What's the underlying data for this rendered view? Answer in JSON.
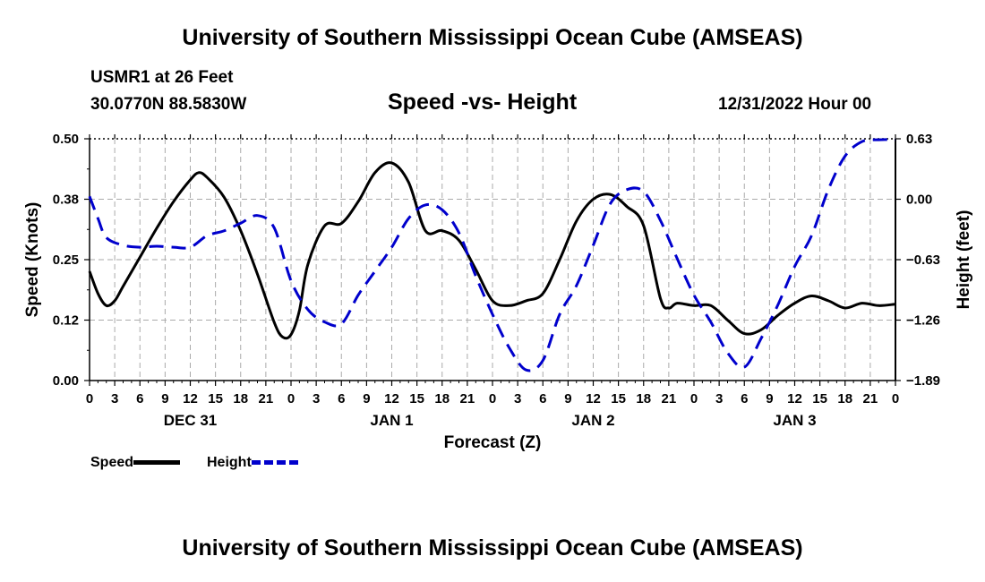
{
  "header": {
    "title": "University of Southern Mississippi Ocean Cube (AMSEAS)",
    "station": "USMR1 at 26 Feet",
    "coordinates": "30.0770N  88.5830W",
    "datetime": "12/31/2022 Hour 00"
  },
  "footer": {
    "title": "University of Southern Mississippi Ocean Cube (AMSEAS)"
  },
  "legend": {
    "speed_label": "Speed",
    "height_label": "Height"
  },
  "colors": {
    "speed": "#000000",
    "height": "#0000cc",
    "grid": "#aaaaaa"
  },
  "chart_data": {
    "type": "line",
    "title": "Speed -vs- Height",
    "xlabel": "Forecast (Z)",
    "ylabel": "Speed (Knots)",
    "y2label": "Height (feet)",
    "xlim": [
      0,
      96
    ],
    "ylim": [
      0,
      0.5
    ],
    "y2lim": [
      -1.89,
      0.63
    ],
    "grid": true,
    "x_ticks": [
      0,
      3,
      6,
      9,
      12,
      15,
      18,
      21,
      24,
      27,
      30,
      33,
      36,
      39,
      42,
      45,
      48,
      51,
      54,
      57,
      60,
      63,
      66,
      69,
      72,
      75,
      78,
      81,
      84,
      87,
      90,
      93,
      96
    ],
    "x_tick_labels": [
      "0",
      "3",
      "6",
      "9",
      "12",
      "15",
      "18",
      "21",
      "0",
      "3",
      "6",
      "9",
      "12",
      "15",
      "18",
      "21",
      "0",
      "3",
      "6",
      "9",
      "12",
      "15",
      "18",
      "21",
      "0",
      "3",
      "6",
      "9",
      "12",
      "15",
      "18",
      "21",
      "0"
    ],
    "day_labels": [
      {
        "x": 12,
        "label": "DEC 31"
      },
      {
        "x": 36,
        "label": "JAN 1"
      },
      {
        "x": 60,
        "label": "JAN 2"
      },
      {
        "x": 84,
        "label": "JAN 3"
      }
    ],
    "y_ticks": [
      0,
      0.125,
      0.25,
      0.375,
      0.5
    ],
    "y_tick_labels": [
      "0.00",
      "0.12",
      "0.25",
      "0.38",
      "0.50"
    ],
    "y2_ticks": [
      -1.89,
      -1.26,
      -0.63,
      0.0,
      0.63
    ],
    "y2_tick_labels": [
      "−1.89",
      "−1.26",
      "−0.63",
      "0.00",
      "0.63"
    ],
    "series": [
      {
        "name": "Speed",
        "axis": "left",
        "style": "solid",
        "x": [
          0,
          1,
          2,
          3,
          4,
          6,
          8,
          10,
          12,
          13,
          14,
          16,
          18,
          20,
          22,
          23,
          24,
          25,
          26,
          28,
          30,
          32,
          34,
          36,
          38,
          40,
          42,
          44,
          46,
          48,
          50,
          52,
          54,
          56,
          58,
          60,
          62,
          64,
          66,
          68,
          69,
          70,
          72,
          74,
          76,
          78,
          80,
          82,
          84,
          86,
          88,
          90,
          92,
          94,
          96
        ],
        "values": [
          0.226,
          0.18,
          0.155,
          0.165,
          0.195,
          0.255,
          0.315,
          0.37,
          0.415,
          0.43,
          0.42,
          0.38,
          0.31,
          0.22,
          0.12,
          0.09,
          0.095,
          0.145,
          0.24,
          0.32,
          0.325,
          0.37,
          0.43,
          0.45,
          0.41,
          0.31,
          0.31,
          0.29,
          0.23,
          0.165,
          0.155,
          0.165,
          0.18,
          0.25,
          0.33,
          0.375,
          0.385,
          0.36,
          0.32,
          0.17,
          0.15,
          0.16,
          0.155,
          0.155,
          0.125,
          0.097,
          0.105,
          0.135,
          0.16,
          0.175,
          0.165,
          0.15,
          0.16,
          0.155,
          0.158
        ]
      },
      {
        "name": "Height",
        "axis": "right",
        "style": "dashed",
        "x": [
          0,
          1,
          2,
          4,
          6,
          8,
          10,
          12,
          14,
          16,
          18,
          20,
          22,
          24,
          26,
          28,
          30,
          32,
          34,
          36,
          38,
          40,
          42,
          44,
          46,
          48,
          50,
          52,
          54,
          56,
          58,
          60,
          62,
          64,
          66,
          68,
          70,
          72,
          74,
          76,
          78,
          80,
          82,
          84,
          86,
          88,
          90,
          92,
          94,
          96
        ],
        "values": [
          0.03,
          -0.2,
          -0.4,
          -0.48,
          -0.5,
          -0.49,
          -0.5,
          -0.5,
          -0.38,
          -0.33,
          -0.25,
          -0.17,
          -0.3,
          -0.85,
          -1.15,
          -1.28,
          -1.3,
          -1.0,
          -0.75,
          -0.5,
          -0.2,
          -0.06,
          -0.11,
          -0.35,
          -0.8,
          -1.2,
          -1.55,
          -1.78,
          -1.68,
          -1.2,
          -0.9,
          -0.48,
          -0.05,
          0.1,
          0.08,
          -0.22,
          -0.62,
          -1.0,
          -1.28,
          -1.6,
          -1.75,
          -1.45,
          -1.1,
          -0.7,
          -0.38,
          0.1,
          0.45,
          0.6,
          0.62,
          0.62
        ]
      }
    ]
  }
}
